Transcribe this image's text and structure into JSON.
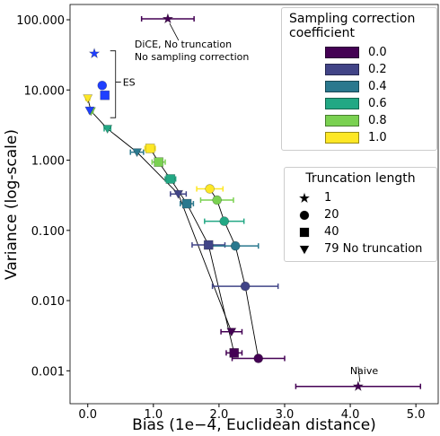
{
  "chart_data": {
    "type": "scatter",
    "xlabel": "Bias (1e−4, Euclidean distance)",
    "ylabel": "Variance (log-scale)",
    "xlim": [
      -0.27,
      5.34
    ],
    "ylim": [
      0.00034,
      165
    ],
    "log_y": true,
    "xticks": [
      {
        "value": 0,
        "label": "0.0"
      },
      {
        "value": 1,
        "label": "1.0"
      },
      {
        "value": 2,
        "label": "2.0"
      },
      {
        "value": 3,
        "label": "3.0"
      },
      {
        "value": 4,
        "label": "4.0"
      },
      {
        "value": 5,
        "label": "5.0"
      }
    ],
    "yticks": [
      {
        "value": 100,
        "label": "100.000"
      },
      {
        "value": 10,
        "label": "10.000"
      },
      {
        "value": 1,
        "label": "1.000"
      },
      {
        "value": 0.1,
        "label": "0.100"
      },
      {
        "value": 0.01,
        "label": "0.010"
      },
      {
        "value": 0.001,
        "label": "0.001"
      }
    ],
    "legend_title": "Sampling correction coefficient",
    "series": [
      {
        "name": "0.0",
        "color": "#440154",
        "markers": [
          "circle",
          "square",
          "triangle"
        ],
        "x": [
          2.6,
          2.23,
          2.19
        ],
        "y": [
          0.0015,
          0.0018,
          0.0036
        ],
        "xerr": [
          0.4,
          0.12,
          0.16
        ]
      },
      {
        "name": "0.2",
        "color": "#414487",
        "markers": [
          "circle",
          "square",
          "triangle"
        ],
        "x": [
          2.4,
          1.84,
          1.38
        ],
        "y": [
          0.016,
          0.062,
          0.33
        ],
        "xerr": [
          0.5,
          0.25,
          0.12
        ]
      },
      {
        "name": "0.4",
        "color": "#2a788e",
        "markers": [
          "circle",
          "square",
          "triangle"
        ],
        "x": [
          2.25,
          1.51,
          0.75
        ],
        "y": [
          0.06,
          0.24,
          1.3
        ],
        "xerr": [
          0.35,
          0.1,
          0.1
        ]
      },
      {
        "name": "0.6",
        "color": "#22a884",
        "markers": [
          "circle",
          "square",
          "triangle"
        ],
        "x": [
          2.08,
          1.26,
          0.3
        ],
        "y": [
          0.135,
          0.54,
          2.8
        ],
        "xerr": [
          0.3,
          0.08,
          0.05
        ]
      },
      {
        "name": "0.8",
        "color": "#7ad151",
        "markers": [
          "circle",
          "square",
          "triangle"
        ],
        "x": [
          1.97,
          1.08,
          0.05
        ],
        "y": [
          0.27,
          0.94,
          5.0
        ],
        "xerr": [
          0.25,
          0.1,
          0.03
        ]
      },
      {
        "name": "1.0",
        "color": "#fde725",
        "markers": [
          "circle",
          "square",
          "triangle"
        ],
        "x": [
          1.86,
          0.95,
          0.0
        ],
        "y": [
          0.39,
          1.47,
          7.6
        ],
        "xerr": [
          0.2,
          0.08,
          0.03
        ]
      }
    ],
    "marker_legend_title": "Truncation length",
    "marker_legend": [
      {
        "label": "1",
        "marker": "star"
      },
      {
        "label": "20",
        "marker": "circle"
      },
      {
        "label": "40",
        "marker": "square"
      },
      {
        "label": "79 No truncation",
        "marker": "triangle"
      }
    ],
    "es": {
      "label": "ES",
      "color": "#1f3fff",
      "markers": [
        "star",
        "circle",
        "square",
        "triangle"
      ],
      "x": [
        0.1,
        0.22,
        0.26,
        0.03
      ],
      "y": [
        33,
        11.6,
        8.4,
        5.1
      ]
    },
    "annotations": [
      {
        "text": "DiCE, No truncation\nNo sampling correction",
        "x": 1.22,
        "y": 103,
        "xerr": 0.4,
        "marker": "star",
        "color": "#440154"
      },
      {
        "text": "Naive",
        "x": 4.12,
        "y": 0.0006,
        "xerr": 0.95,
        "marker": "star",
        "color": "#440154"
      }
    ]
  }
}
